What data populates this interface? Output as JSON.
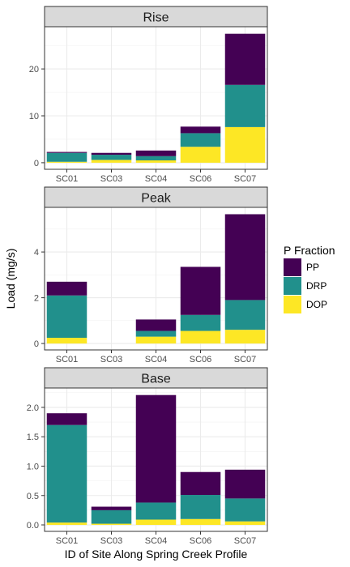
{
  "chart_data": {
    "type": "bar",
    "stacked": true,
    "facet_by": "Flow Condition",
    "xlabel": "ID of Site Along Spring Creek Profile",
    "ylabel": "Load (mg/s)",
    "categories": [
      "SC01",
      "SC03",
      "SC04",
      "SC06",
      "SC07"
    ],
    "legend": {
      "title": "P Fraction",
      "placement": "right",
      "entries": [
        "PP",
        "DRP",
        "DOP"
      ]
    },
    "colors": {
      "PP": "#440154",
      "DRP": "#21908C",
      "DOP": "#FDE725"
    },
    "grid": true,
    "panels": [
      {
        "title": "Rise",
        "ylim": [
          -1.4,
          29
        ],
        "yticks": [
          0,
          10,
          20
        ],
        "series": [
          {
            "name": "DOP",
            "values": [
              0.2,
              0.6,
              0.5,
              3.4,
              7.6
            ]
          },
          {
            "name": "DRP",
            "values": [
              1.9,
              1.1,
              0.9,
              2.9,
              9.0
            ]
          },
          {
            "name": "PP",
            "values": [
              0.2,
              0.4,
              1.2,
              1.4,
              10.9
            ]
          }
        ]
      },
      {
        "title": "Peak",
        "ylim": [
          -0.28,
          5.95
        ],
        "yticks": [
          0,
          2,
          4
        ],
        "series": [
          {
            "name": "DOP",
            "values": [
              0.25,
              0.0,
              0.3,
              0.55,
              0.6
            ]
          },
          {
            "name": "DRP",
            "values": [
              1.85,
              0.0,
              0.25,
              0.7,
              1.3
            ]
          },
          {
            "name": "PP",
            "values": [
              0.6,
              0.0,
              0.5,
              2.1,
              3.75
            ]
          }
        ]
      },
      {
        "title": "Base",
        "ylim": [
          -0.11,
          2.33
        ],
        "yticks": [
          0.0,
          0.5,
          1.0,
          1.5,
          2.0
        ],
        "series": [
          {
            "name": "DOP",
            "values": [
              0.04,
              0.02,
              0.09,
              0.1,
              0.06
            ]
          },
          {
            "name": "DRP",
            "values": [
              1.66,
              0.23,
              0.29,
              0.41,
              0.39
            ]
          },
          {
            "name": "PP",
            "values": [
              0.2,
              0.06,
              1.83,
              0.39,
              0.49
            ]
          }
        ]
      }
    ]
  }
}
